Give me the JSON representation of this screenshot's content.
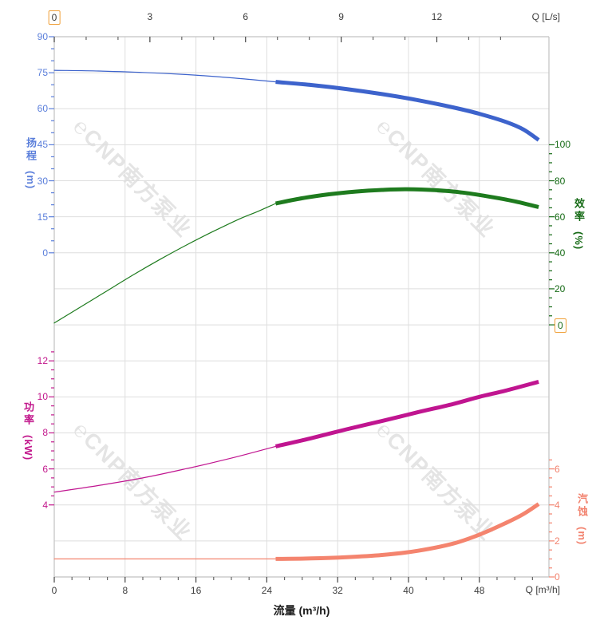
{
  "watermark": {
    "logo_glyph": "℮",
    "text": "CNP南方泵业"
  },
  "chart_data": {
    "type": "line",
    "xlabel": "流量 (m³/h)",
    "x_axis_bottom": {
      "label": "Q [m³/h]",
      "major_ticks": [
        0,
        8,
        16,
        24,
        32,
        40,
        48
      ],
      "minor_step": 2,
      "range": [
        0,
        55.9
      ]
    },
    "x_axis_top": {
      "label": "Q [L/s]",
      "major_ticks": [
        0,
        3,
        6,
        9,
        12
      ],
      "minor_step": 1,
      "range": [
        0,
        15.5
      ],
      "highlighted_tick": 0
    },
    "y_axes": [
      {
        "id": "head",
        "side": "left",
        "title": "扬程",
        "unit": "(m)",
        "color": "#5b7fdb",
        "major_ticks": [
          90,
          75,
          60,
          45,
          30,
          15,
          0
        ],
        "minor_step": 5,
        "range": [
          0,
          90
        ]
      },
      {
        "id": "efficiency",
        "side": "right",
        "title": "效率",
        "unit": "(%)",
        "color": "#156a15",
        "major_ticks": [
          100,
          80,
          60,
          40,
          20,
          0
        ],
        "minor_step": 5,
        "range": [
          0,
          100
        ],
        "highlighted_tick": 0
      },
      {
        "id": "power",
        "side": "left",
        "title": "功率",
        "unit": "(kW)",
        "color": "#c2188c",
        "major_ticks": [
          12,
          10,
          8,
          6,
          4
        ],
        "minor_step": 0.5,
        "range": [
          4,
          12.5
        ]
      },
      {
        "id": "npsh",
        "side": "right",
        "title": "汽蚀",
        "unit": "(m)",
        "color": "#f2836f",
        "major_ticks": [
          6,
          4,
          2,
          0
        ],
        "minor_step": 0.5,
        "range": [
          0,
          6.5
        ]
      }
    ],
    "series": [
      {
        "id": "head-curve",
        "name": "扬程",
        "axis": "head",
        "color": "#3d63cc",
        "thin": [
          [
            0,
            76
          ],
          [
            5,
            75.7
          ],
          [
            10,
            75.1
          ],
          [
            15,
            74.2
          ],
          [
            20,
            72.9
          ],
          [
            25,
            71.2
          ]
        ],
        "thick": [
          [
            25,
            71.2
          ],
          [
            29,
            69.9
          ],
          [
            33,
            68.2
          ],
          [
            37,
            66.1
          ],
          [
            41,
            63.6
          ],
          [
            45,
            60.6
          ],
          [
            48,
            57.9
          ],
          [
            51,
            54.5
          ],
          [
            53,
            51.3
          ],
          [
            54.7,
            47
          ]
        ]
      },
      {
        "id": "efficiency-curve",
        "name": "效率",
        "axis": "efficiency",
        "color": "#1e7b1e",
        "thin": [
          [
            0,
            1
          ],
          [
            3,
            10
          ],
          [
            6,
            19
          ],
          [
            9,
            28
          ],
          [
            12,
            36.5
          ],
          [
            15,
            44.5
          ],
          [
            18,
            52
          ],
          [
            21,
            59
          ],
          [
            23,
            63
          ],
          [
            25,
            67.4
          ]
        ],
        "thick": [
          [
            25,
            67.4
          ],
          [
            28,
            70.3
          ],
          [
            31,
            72.5
          ],
          [
            34,
            74
          ],
          [
            37,
            74.9
          ],
          [
            39.8,
            75.3
          ],
          [
            43,
            74.8
          ],
          [
            46,
            73.5
          ],
          [
            49,
            71.3
          ],
          [
            52,
            68.6
          ],
          [
            54.7,
            65.4
          ]
        ]
      },
      {
        "id": "power-curve",
        "name": "功率",
        "axis": "power",
        "color": "#c01590",
        "thin": [
          [
            0,
            4.71
          ],
          [
            5,
            5.08
          ],
          [
            10,
            5.5
          ],
          [
            15,
            6.02
          ],
          [
            20,
            6.6
          ],
          [
            25,
            7.25
          ]
        ],
        "thick": [
          [
            25,
            7.25
          ],
          [
            29,
            7.7
          ],
          [
            33,
            8.2
          ],
          [
            37,
            8.66
          ],
          [
            41,
            9.14
          ],
          [
            45,
            9.6
          ],
          [
            48,
            10.0
          ],
          [
            51,
            10.35
          ],
          [
            54.7,
            10.84
          ]
        ]
      },
      {
        "id": "npsh-curve",
        "name": "汽蚀",
        "axis": "npsh",
        "color": "#f4846e",
        "thin": [
          [
            0,
            1.0
          ],
          [
            12,
            1.0
          ],
          [
            25,
            1.0
          ]
        ],
        "thick": [
          [
            25,
            1.0
          ],
          [
            29,
            1.03
          ],
          [
            33,
            1.1
          ],
          [
            37,
            1.22
          ],
          [
            41,
            1.45
          ],
          [
            45,
            1.85
          ],
          [
            48,
            2.35
          ],
          [
            51,
            3.0
          ],
          [
            53,
            3.5
          ],
          [
            54.7,
            4.05
          ]
        ]
      }
    ]
  }
}
